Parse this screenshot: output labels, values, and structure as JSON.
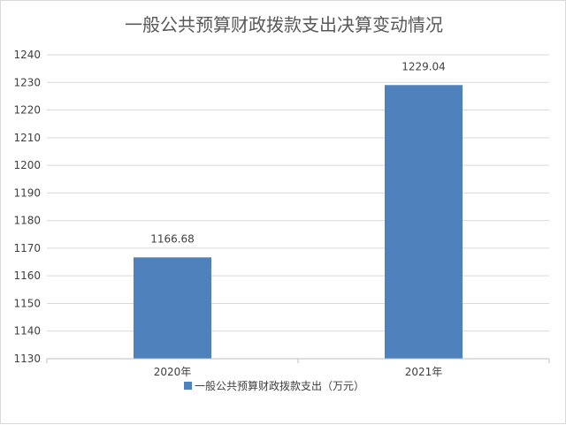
{
  "chart_data": {
    "type": "bar",
    "title": "一般公共预算财政拨款支出决算变动情况",
    "categories": [
      "2020年",
      "2021年"
    ],
    "series": [
      {
        "name": "一般公共预算财政拨款支出（万元）",
        "values": [
          1166.68,
          1229.04
        ],
        "color": "#4F81BD"
      }
    ],
    "data_labels": [
      "1166.68",
      "1229.04"
    ],
    "ylim": [
      1130,
      1240
    ],
    "y_ticks": [
      1130,
      1140,
      1150,
      1160,
      1170,
      1180,
      1190,
      1200,
      1210,
      1220,
      1230,
      1240
    ],
    "xlabel": "",
    "ylabel": "",
    "grid": true,
    "legend_position": "bottom"
  }
}
